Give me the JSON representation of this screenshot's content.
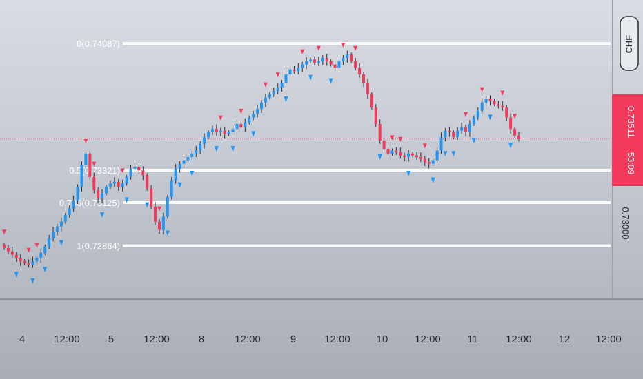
{
  "chart_data": {
    "type": "candlestick",
    "currency": "CHF",
    "current_price": "0.73511",
    "countdown": "53:09",
    "price_axis_labels": [
      "0.73000"
    ],
    "x_tick_labels": [
      "4",
      "12:00",
      "5",
      "12:00",
      "8",
      "12:00",
      "9",
      "12:00",
      "10",
      "12:00",
      "11",
      "12:00",
      "12",
      "12:00"
    ],
    "fib_levels": [
      {
        "label": "0(0.74087)",
        "price": 0.74087
      },
      {
        "label": "0.5(0.73321)",
        "price": 0.73321
      },
      {
        "label": "0.786(0.73125)",
        "price": 0.73125
      },
      {
        "label": "1(0.72864)",
        "price": 0.72864
      }
    ],
    "ylim": [
      0.7255,
      0.7435
    ],
    "closes": [
      0.7285,
      0.7283,
      0.7281,
      0.7279,
      0.7277,
      0.7276,
      0.7275,
      0.7277,
      0.7279,
      0.7282,
      0.7286,
      0.7291,
      0.7295,
      0.7298,
      0.7301,
      0.7305,
      0.7309,
      0.7314,
      0.7322,
      0.7335,
      0.7342,
      0.7328,
      0.732,
      0.7315,
      0.7318,
      0.7322,
      0.7324,
      0.7325,
      0.7322,
      0.7324,
      0.7328,
      0.7333,
      0.7334,
      0.7332,
      0.7329,
      0.7321,
      0.731,
      0.7301,
      0.7296,
      0.7304,
      0.7316,
      0.7326,
      0.7333,
      0.7336,
      0.7338,
      0.734,
      0.7342,
      0.7344,
      0.7348,
      0.7352,
      0.7355,
      0.7357,
      0.7355,
      0.7356,
      0.7354,
      0.7355,
      0.7357,
      0.736,
      0.7358,
      0.7361,
      0.7364,
      0.7366,
      0.7369,
      0.7373,
      0.7376,
      0.7378,
      0.738,
      0.7382,
      0.7385,
      0.739,
      0.7393,
      0.7392,
      0.7394,
      0.7396,
      0.7398,
      0.7399,
      0.7397,
      0.7398,
      0.74,
      0.7398,
      0.7396,
      0.7394,
      0.7398,
      0.74,
      0.7402,
      0.7398,
      0.7394,
      0.739,
      0.7385,
      0.7378,
      0.737,
      0.736,
      0.735,
      0.7345,
      0.7342,
      0.7344,
      0.7343,
      0.7341,
      0.734,
      0.7342,
      0.7341,
      0.734,
      0.7339,
      0.7337,
      0.7336,
      0.7338,
      0.7344,
      0.7352,
      0.7356,
      0.7355,
      0.7352,
      0.7356,
      0.7358,
      0.7355,
      0.736,
      0.7364,
      0.7368,
      0.7373,
      0.7375,
      0.7374,
      0.7372,
      0.7371,
      0.737,
      0.7364,
      0.7357,
      0.7353,
      0.7351
    ],
    "signals": [
      {
        "bar": 0,
        "type": "sell"
      },
      {
        "bar": 3,
        "type": "buy"
      },
      {
        "bar": 6,
        "type": "sell"
      },
      {
        "bar": 8,
        "type": "sell"
      },
      {
        "bar": 7,
        "type": "buy"
      },
      {
        "bar": 10,
        "type": "buy"
      },
      {
        "bar": 14,
        "type": "buy"
      },
      {
        "bar": 20,
        "type": "sell"
      },
      {
        "bar": 22,
        "type": "sell"
      },
      {
        "bar": 24,
        "type": "buy"
      },
      {
        "bar": 29,
        "type": "sell"
      },
      {
        "bar": 30,
        "type": "buy"
      },
      {
        "bar": 35,
        "type": "buy"
      },
      {
        "bar": 38,
        "type": "sell"
      },
      {
        "bar": 40,
        "type": "buy"
      },
      {
        "bar": 43,
        "type": "buy"
      },
      {
        "bar": 46,
        "type": "buy"
      },
      {
        "bar": 52,
        "type": "buy"
      },
      {
        "bar": 53,
        "type": "sell"
      },
      {
        "bar": 56,
        "type": "buy"
      },
      {
        "bar": 58,
        "type": "sell"
      },
      {
        "bar": 61,
        "type": "buy"
      },
      {
        "bar": 64,
        "type": "sell"
      },
      {
        "bar": 67,
        "type": "sell"
      },
      {
        "bar": 69,
        "type": "buy"
      },
      {
        "bar": 73,
        "type": "sell"
      },
      {
        "bar": 75,
        "type": "buy"
      },
      {
        "bar": 77,
        "type": "sell"
      },
      {
        "bar": 80,
        "type": "buy"
      },
      {
        "bar": 83,
        "type": "sell"
      },
      {
        "bar": 86,
        "type": "sell"
      },
      {
        "bar": 92,
        "type": "buy"
      },
      {
        "bar": 95,
        "type": "sell"
      },
      {
        "bar": 97,
        "type": "sell"
      },
      {
        "bar": 99,
        "type": "buy"
      },
      {
        "bar": 103,
        "type": "sell"
      },
      {
        "bar": 105,
        "type": "buy"
      },
      {
        "bar": 108,
        "type": "buy"
      },
      {
        "bar": 110,
        "type": "buy"
      },
      {
        "bar": 113,
        "type": "sell"
      },
      {
        "bar": 115,
        "type": "buy"
      },
      {
        "bar": 117,
        "type": "sell"
      },
      {
        "bar": 119,
        "type": "buy"
      },
      {
        "bar": 122,
        "type": "sell"
      },
      {
        "bar": 124,
        "type": "buy"
      },
      {
        "bar": 125,
        "type": "sell"
      }
    ]
  },
  "colors": {
    "up": "#2196f3",
    "down": "#f23a5c",
    "wick": "#2a2e39",
    "fib_line": "#ffffff",
    "price_tag": "#f23a5c",
    "price_line": "#f23a5c",
    "axis_text": "#2a2e39"
  }
}
